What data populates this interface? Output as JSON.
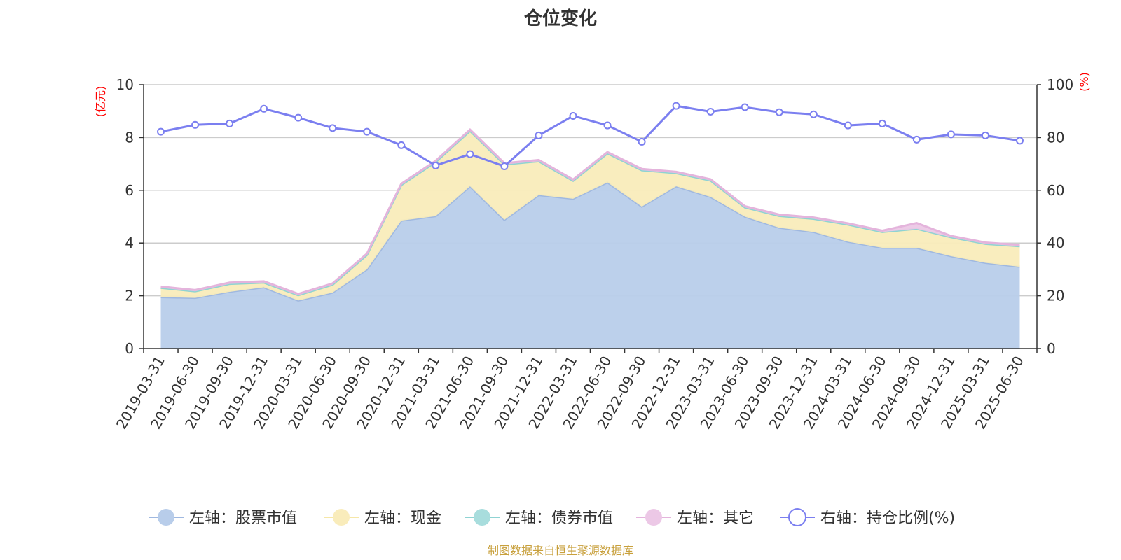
{
  "chart_data": {
    "type": "area",
    "title": "仓位变化",
    "left_axis_unit": "(亿元)",
    "right_axis_unit": "(%)",
    "x": [
      "2019-03-31",
      "2019-06-30",
      "2019-09-30",
      "2019-12-31",
      "2020-03-31",
      "2020-06-30",
      "2020-09-30",
      "2020-12-31",
      "2021-03-31",
      "2021-06-30",
      "2021-09-30",
      "2021-12-31",
      "2022-03-31",
      "2022-06-30",
      "2022-09-30",
      "2022-12-31",
      "2023-03-31",
      "2023-06-30",
      "2023-09-30",
      "2023-12-31",
      "2024-03-31",
      "2024-06-30",
      "2024-09-30",
      "2024-12-31",
      "2025-03-31",
      "2025-06-30"
    ],
    "ylim_left": [
      0,
      10
    ],
    "yticks_left": [
      0,
      2,
      4,
      6,
      8,
      10
    ],
    "ylim_right": [
      0,
      100
    ],
    "yticks_right": [
      0,
      20,
      40,
      60,
      80,
      100
    ],
    "grid": true,
    "legend_position": "bottom",
    "series": [
      {
        "name": "左轴：股票市值",
        "axis": "left",
        "kind": "area",
        "color": "#9fb8e0",
        "fill": "#b8cdea",
        "values": [
          1.95,
          1.92,
          2.15,
          2.32,
          1.82,
          2.12,
          3.0,
          4.85,
          5.02,
          6.15,
          4.88,
          5.82,
          5.68,
          6.3,
          5.38,
          6.15,
          5.75,
          5.0,
          4.58,
          4.42,
          4.05,
          3.82,
          3.82,
          3.5,
          3.25,
          3.1
        ]
      },
      {
        "name": "左轴：现金",
        "axis": "left",
        "kind": "area",
        "color": "#f6e7a8",
        "fill": "#f9ecbb",
        "values": [
          0.35,
          0.25,
          0.3,
          0.18,
          0.2,
          0.3,
          0.55,
          1.35,
          2.05,
          2.1,
          2.1,
          1.28,
          0.68,
          1.1,
          1.38,
          0.5,
          0.62,
          0.35,
          0.45,
          0.5,
          0.65,
          0.6,
          0.72,
          0.72,
          0.72,
          0.78
        ]
      },
      {
        "name": "左轴：债券市值",
        "axis": "left",
        "kind": "area",
        "color": "#8fd3d3",
        "fill": "#a8dddd",
        "values": [
          0,
          0,
          0,
          0,
          0,
          0,
          0,
          0,
          0,
          0,
          0,
          0,
          0,
          0,
          0,
          0,
          0,
          0,
          0,
          0,
          0,
          0,
          0,
          0,
          0,
          0
        ]
      },
      {
        "name": "左轴：其它",
        "axis": "left",
        "kind": "area",
        "color": "#e4b4dc",
        "fill": "#ecc8e6",
        "values": [
          0.05,
          0.05,
          0.05,
          0.05,
          0.05,
          0.05,
          0.05,
          0.05,
          0.05,
          0.05,
          0.05,
          0.05,
          0.05,
          0.05,
          0.05,
          0.05,
          0.05,
          0.05,
          0.05,
          0.05,
          0.05,
          0.05,
          0.22,
          0.05,
          0.05,
          0.05
        ]
      },
      {
        "name": "右轴：持仓比例(%)",
        "axis": "right",
        "kind": "line",
        "color": "#7b7ff0",
        "values": [
          82.2,
          84.8,
          85.3,
          90.9,
          87.5,
          83.6,
          82.2,
          77.1,
          69.4,
          73.7,
          69.1,
          80.8,
          88.2,
          84.6,
          78.4,
          92.0,
          89.8,
          91.5,
          89.6,
          88.8,
          84.6,
          85.3,
          79.2,
          81.2,
          80.8,
          78.8
        ]
      }
    ]
  },
  "source_note": "制图数据来自恒生聚源数据库"
}
